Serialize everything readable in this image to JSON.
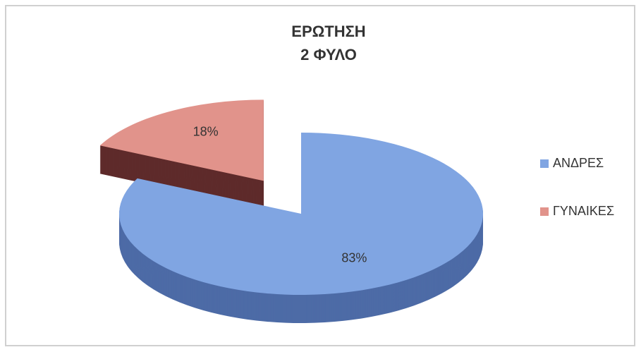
{
  "chart_data": {
    "type": "pie3d",
    "title": [
      "ΕΡΩΤΗΣΗ",
      "2 ΦΥΛΟ"
    ],
    "categories": [
      "ΑΝΔΡΕΣ",
      "ΓΥΝΑΙΚΕΣ"
    ],
    "values": [
      83,
      18
    ],
    "value_labels": [
      "83%",
      "18%"
    ],
    "colors": [
      "#80a5e2",
      "#e1938b"
    ],
    "side_colors": [
      "#4d6ba6",
      "#5e2b2b"
    ],
    "exploded": [
      false,
      true
    ],
    "legend": "right"
  }
}
